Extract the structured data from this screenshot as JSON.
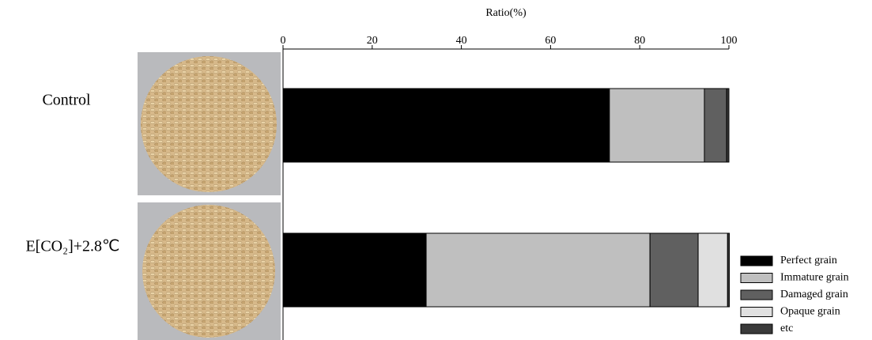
{
  "chart_data": {
    "type": "stacked_barh",
    "x_label": "Ratio(%)",
    "categories": [
      "Control",
      "E[CO₂]+2.8℃"
    ],
    "series": [
      {
        "name": "Perfect grain",
        "color": "#000000",
        "values": [
          73.2,
          32.1
        ]
      },
      {
        "name": "Immature grain",
        "color": "#bfbfbf",
        "values": [
          21.3,
          50.2
        ]
      },
      {
        "name": "Damaged grain",
        "color": "#606060",
        "values": [
          5.0,
          10.8
        ]
      },
      {
        "name": "Opaque grain",
        "color": "#e0e0e0",
        "values": [
          0,
          6.6
        ]
      },
      {
        "name": "etc",
        "color": "#3a3a3a",
        "values": [
          0.5,
          0.4
        ]
      }
    ],
    "xlim": [
      0,
      100
    ],
    "xticks": [
      0,
      20,
      40,
      60,
      80,
      100
    ],
    "legend": "lower right"
  }
}
